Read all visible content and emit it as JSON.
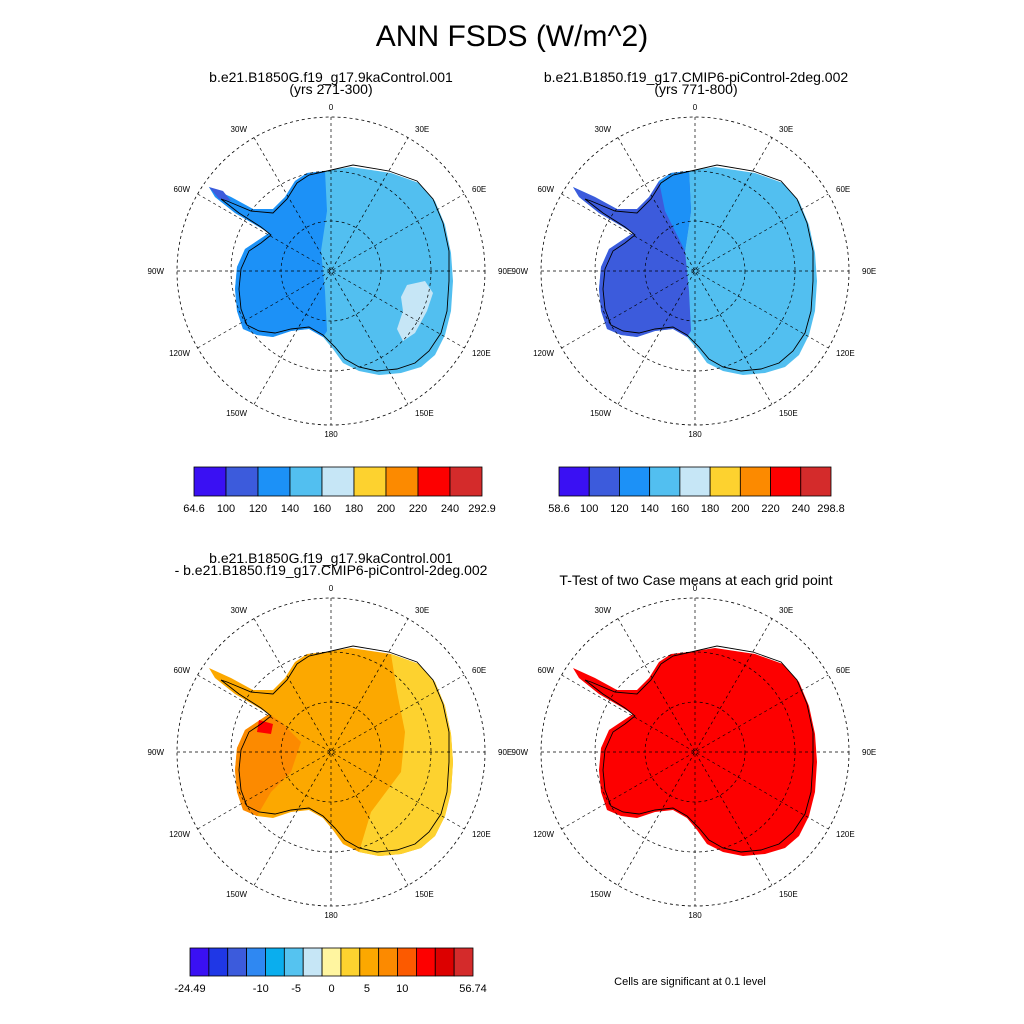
{
  "title": "ANN FSDS (W/m^2)",
  "panels": [
    {
      "title_line1": "b.e21.B1850G.f19_g17.9kaControl.001",
      "title_line2": "(yrs 271-300)"
    },
    {
      "title_line1": "b.e21.B1850.f19_g17.CMIP6-piControl-2deg.002",
      "title_line2": "(yrs 771-800)"
    },
    {
      "title_line1": "b.e21.B1850G.f19_g17.9kaControl.001",
      "title_line2": "- b.e21.B1850.f19_g17.CMIP6-piControl-2deg.002"
    },
    {
      "title_line1": "T-Test of two Case means at each grid point",
      "title_line2": ""
    }
  ],
  "map_labels": {
    "top": "0",
    "bottom": "180",
    "left": "90W",
    "right": "90E",
    "upper_left": "30W",
    "upper_right": "30E",
    "mid_upper_left": "60W",
    "mid_upper_right": "60E",
    "mid_lower_left": "120W",
    "mid_lower_right": "120E",
    "lower_left": "150W",
    "lower_right": "150E"
  },
  "colorbars": [
    {
      "colors": [
        "#3a10f3",
        "#3c5bdc",
        "#1c91f7",
        "#52bff0",
        "#c6e6f6",
        "#fdd22f",
        "#fc8a00",
        "#fd0000",
        "#d42b2b"
      ],
      "labels": [
        "64.6",
        "100",
        "120",
        "140",
        "160",
        "180",
        "200",
        "220",
        "240",
        "292.9"
      ]
    },
    {
      "colors": [
        "#3a10f3",
        "#3c5bdc",
        "#1c91f7",
        "#52bff0",
        "#c6e6f6",
        "#fdd22f",
        "#fc8a00",
        "#fd0000",
        "#d42b2b"
      ],
      "labels": [
        "58.6",
        "100",
        "120",
        "140",
        "160",
        "180",
        "200",
        "220",
        "240",
        "298.8"
      ]
    },
    {
      "colors": [
        "#3a10f3",
        "#1f37e6",
        "#3c5bdc",
        "#2f88f2",
        "#0aaeee",
        "#55c3f0",
        "#c6e6f6",
        "#fff5a0",
        "#fdd22f",
        "#fca800",
        "#fc8a00",
        "#fc5a00",
        "#fd0000",
        "#dc0000",
        "#d42b2b"
      ],
      "labels": [
        "-24.49",
        "",
        "-10",
        "-5",
        "0",
        "5",
        "10",
        "",
        "56.74"
      ]
    }
  ],
  "note": "Cells are significant at 0.1 level",
  "fills": {
    "p1_west": "#1c91f7",
    "p1_east": "#52bff0",
    "p1_highlight": "#c6e6f6",
    "p1_dark": "#3c5bdc",
    "p2_west": "#3c5bdc",
    "p2_mid": "#1c91f7",
    "p2_east": "#52bff0",
    "p3_main": "#fca800",
    "p3_east": "#fdd22f",
    "p3_west": "#fc8a00",
    "p3_red": "#fd0000",
    "p4_main": "#fd0000"
  }
}
